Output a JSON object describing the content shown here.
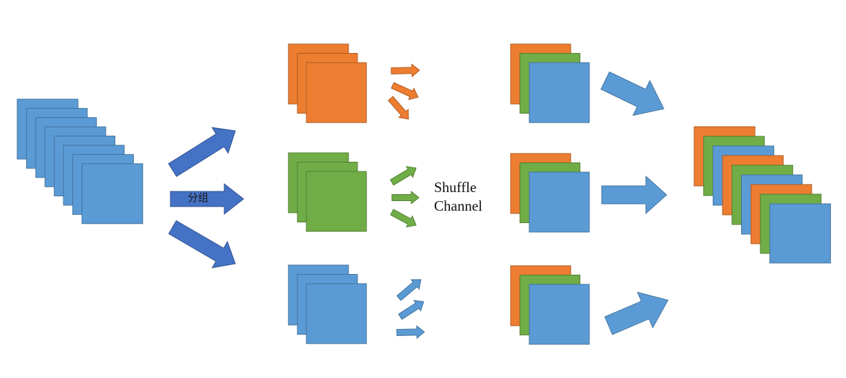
{
  "labels": {
    "group": "分组",
    "shuffle_line1": "Shuffle",
    "shuffle_line2": "Channel"
  },
  "colors": {
    "blue": "#5b9bd5",
    "blue_stroke": "#41719c",
    "orange": "#ed7d31",
    "orange_stroke": "#ae5a21",
    "green": "#70ad47",
    "green_stroke": "#507e32",
    "arrow_dark_blue": "#4472c4",
    "arrow_dark_blue_stroke": "#2f528f",
    "arrow_light_blue": "#5b9bd5",
    "arrow_light_blue_stroke": "#41719c"
  },
  "input_stack": {
    "colors": [
      "blue",
      "blue",
      "blue",
      "blue",
      "blue",
      "blue",
      "blue",
      "blue"
    ]
  },
  "groups": [
    {
      "name": "orange-group",
      "colors": [
        "orange",
        "orange",
        "orange"
      ],
      "arrow_color": "orange"
    },
    {
      "name": "green-group",
      "colors": [
        "green",
        "green",
        "green"
      ],
      "arrow_color": "green"
    },
    {
      "name": "blue-group",
      "colors": [
        "blue",
        "blue",
        "blue"
      ],
      "arrow_color": "blue"
    }
  ],
  "shuffled_groups": [
    {
      "name": "shuffled-group-1",
      "colors": [
        "orange",
        "green",
        "blue"
      ]
    },
    {
      "name": "shuffled-group-2",
      "colors": [
        "orange",
        "green",
        "blue"
      ]
    },
    {
      "name": "shuffled-group-3",
      "colors": [
        "orange",
        "green",
        "blue"
      ]
    }
  ],
  "output_stack": {
    "colors": [
      "orange",
      "green",
      "blue",
      "orange",
      "green",
      "blue",
      "orange",
      "green",
      "blue"
    ]
  }
}
